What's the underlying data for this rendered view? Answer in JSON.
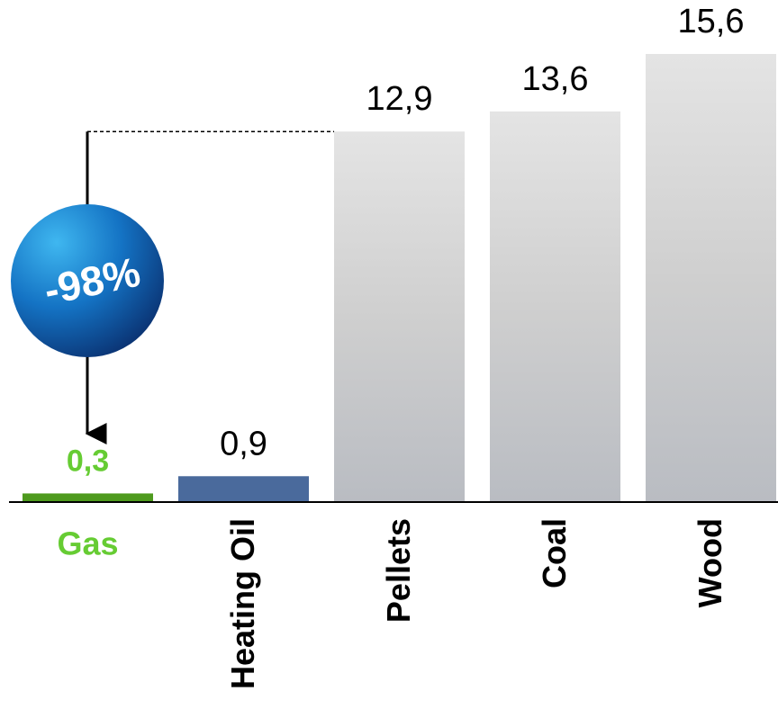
{
  "chart_data": {
    "type": "bar",
    "categories": [
      "Gas",
      "Heating Oil",
      "Pellets",
      "Coal",
      "Wood"
    ],
    "values": [
      0.3,
      0.9,
      12.9,
      13.6,
      15.6
    ],
    "value_labels": [
      "0,3",
      "0,9",
      "12,9",
      "13,6",
      "15,6"
    ],
    "colors": [
      "#4e9a1e",
      "#4a6a9c",
      "#d4d4d4",
      "#d4d4d4",
      "#d4d4d4"
    ],
    "highlight_color": "#66cc33",
    "annotation": "-98%"
  }
}
